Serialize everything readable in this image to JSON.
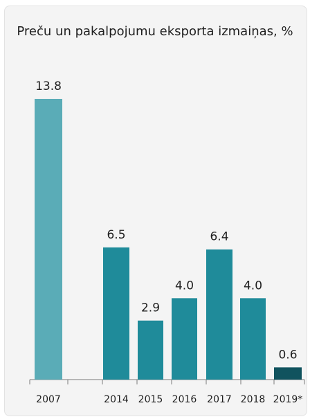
{
  "chart_data": {
    "type": "bar",
    "title": "Preču un pakalpojumu eksporta izmaiņas, %",
    "categories": [
      "2007",
      "",
      "2014",
      "2015",
      "2016",
      "2017",
      "2018",
      "2019*"
    ],
    "values": [
      13.8,
      null,
      6.5,
      2.9,
      4.0,
      6.4,
      4.0,
      0.6
    ],
    "value_labels": [
      "13.8",
      "",
      "6.5",
      "2.9",
      "4.0",
      "6.4",
      "4.0",
      "0.6"
    ],
    "colors": [
      "#5aacb7",
      null,
      "#1f8b9a",
      "#1f8b9a",
      "#1f8b9a",
      "#1f8b9a",
      "#1f8b9a",
      "#10535e"
    ],
    "ylim": [
      0,
      13.8
    ],
    "xlabel": "",
    "ylabel": "",
    "grid": false,
    "legend": "none"
  }
}
